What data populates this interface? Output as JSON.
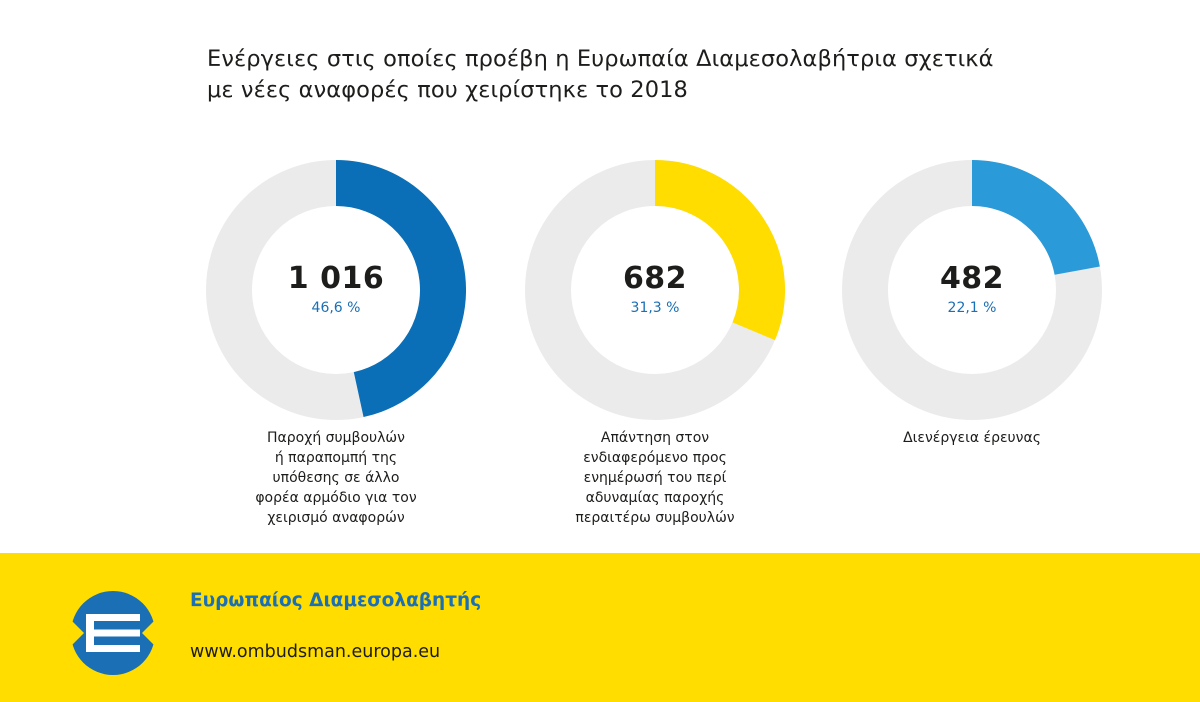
{
  "chart_data": {
    "type": "donut",
    "title": "Ενέργειες στις οποίες προέβη η Ευρωπαία Διαμεσολαβήτρια σχετικά\nμε νέες αναφορές που χειρίστηκε το 2018",
    "track_color": "#ebebeb",
    "series": [
      {
        "name": "Παροχή συμβουλών\nή παραπομπή της\nυπόθεσης σε άλλο\nφορέα αρμόδιο για τον\nχειρισμό αναφορών",
        "value": 1016,
        "value_label": "1 016",
        "percent": 46.6,
        "percent_label": "46,6 %",
        "color": "#0a6fb6"
      },
      {
        "name": "Απάντηση στον\nενδιαφερόμενο προς\nενημέρωσή του περί\nαδυναμίας παροχής\nπεραιτέρω συμβουλών",
        "value": 682,
        "value_label": "682",
        "percent": 31.3,
        "percent_label": "31,3 %",
        "color": "#ffdd00"
      },
      {
        "name": "Διενέργεια έρευνας",
        "value": 482,
        "value_label": "482",
        "percent": 22.1,
        "percent_label": "22,1 %",
        "color": "#2b9ad8"
      }
    ]
  },
  "footer": {
    "organisation": "Ευρωπαίος Διαμεσολαβητής",
    "website": "www.ombudsman.europa.eu",
    "background_color": "#ffdd00",
    "logo_colors": {
      "blue": "#1a6fb5",
      "yellow": "#ffdd00",
      "white": "#ffffff"
    }
  }
}
